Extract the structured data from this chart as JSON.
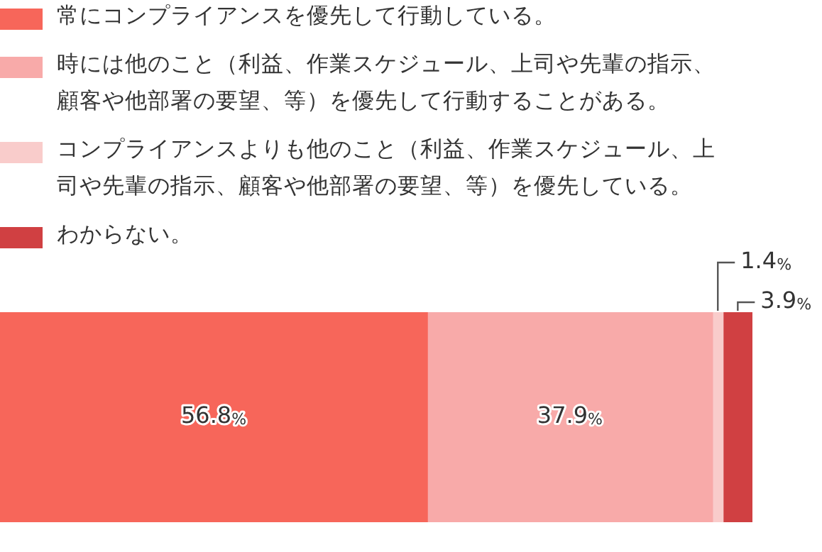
{
  "chart_data": {
    "type": "bar",
    "orientation": "horizontal",
    "stacked": true,
    "legend": "top left",
    "categories": [
      null
    ],
    "series": [
      {
        "name": "常にコンプライアンスを優先して行動している。",
        "color": "#f7665a",
        "values": [
          56.8
        ],
        "value_labels": [
          "56.8%"
        ]
      },
      {
        "name": "時には他のこと（利益、作業スケジュール、上司や先輩の指示、顧客や他部署の要望、等）を優先して行動することがある。",
        "color": "#f8aaa9",
        "values": [
          37.9
        ],
        "value_labels": [
          "37.9%"
        ]
      },
      {
        "name": "コンプライアンスよりも他のこと（利益、作業スケジュール、上司や先輩の指示、顧客や他部署の要望、等）を優先している。",
        "color": "#f9cccb",
        "values": [
          1.4
        ],
        "value_labels": [
          "1.4%"
        ]
      },
      {
        "name": "わからない。",
        "color": "#d04042",
        "values": [
          3.9
        ],
        "value_labels": [
          "3.9%"
        ]
      }
    ]
  }
}
